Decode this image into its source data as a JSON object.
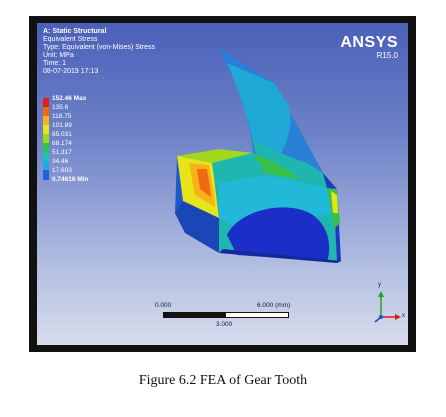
{
  "header": {
    "title": "A: Static Structural",
    "result": "Equivalent Stress",
    "type": "Type: Equivalent (von-Mises) Stress",
    "unit": "Unit: MPa",
    "time": "Time: 1",
    "date": "08-07-2019 17:13"
  },
  "brand": {
    "name": "ANSYS",
    "version": "R15.0"
  },
  "legend": {
    "items": [
      {
        "label": "152.46 Max",
        "color": "#e41d1d",
        "bold": true
      },
      {
        "label": "135.6",
        "color": "#f06a12",
        "bold": false
      },
      {
        "label": "118.75",
        "color": "#f7b21a",
        "bold": false
      },
      {
        "label": "101.89",
        "color": "#e8e41a",
        "bold": false
      },
      {
        "label": "85.031",
        "color": "#9fd81c",
        "bold": false
      },
      {
        "label": "68.174",
        "color": "#36c24a",
        "bold": false
      },
      {
        "label": "51.317",
        "color": "#1bc5b0",
        "bold": false
      },
      {
        "label": "34.46",
        "color": "#1ea8e6",
        "bold": false
      },
      {
        "label": "17.603",
        "color": "#2561d6",
        "bold": false
      },
      {
        "label": "0.74616 Min",
        "color": "#1b24c8",
        "bold": true
      }
    ]
  },
  "scale": {
    "start": "0.000",
    "end": "6.000 (mm)",
    "mid": "3.000"
  },
  "triad": {
    "x": "x",
    "y": "y"
  },
  "caption": "Figure 6.2 FEA of Gear Tooth"
}
